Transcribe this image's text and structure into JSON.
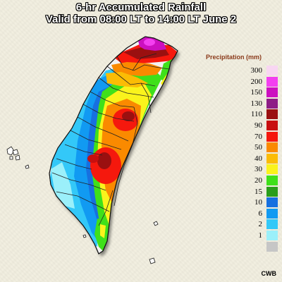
{
  "title": {
    "line1": "6-hr Accumulated Rainfall",
    "line2": "Valid from 08:00 LT to 14:00 LT June 2"
  },
  "legend": {
    "title": "Precipitation (mm)",
    "items": [
      {
        "label": "300",
        "color": "#f8d6f2"
      },
      {
        "label": "200",
        "color": "#f33ff0"
      },
      {
        "label": "150",
        "color": "#cc10c0"
      },
      {
        "label": "130",
        "color": "#8e1d86"
      },
      {
        "label": "110",
        "color": "#9a1010"
      },
      {
        "label": "90",
        "color": "#c80f0f"
      },
      {
        "label": "70",
        "color": "#f5180d"
      },
      {
        "label": "50",
        "color": "#fa8a00"
      },
      {
        "label": "40",
        "color": "#fbbc05"
      },
      {
        "label": "30",
        "color": "#faf31c"
      },
      {
        "label": "20",
        "color": "#3fe01a"
      },
      {
        "label": "15",
        "color": "#2a9d1a"
      },
      {
        "label": "10",
        "color": "#1770e0"
      },
      {
        "label": "6",
        "color": "#119af2"
      },
      {
        "label": "2",
        "color": "#33c8f8"
      },
      {
        "label": "1",
        "color": "#9bf0fa"
      },
      {
        "label": "",
        "color": "#c6c6c6"
      }
    ]
  },
  "credit": "CWB"
}
